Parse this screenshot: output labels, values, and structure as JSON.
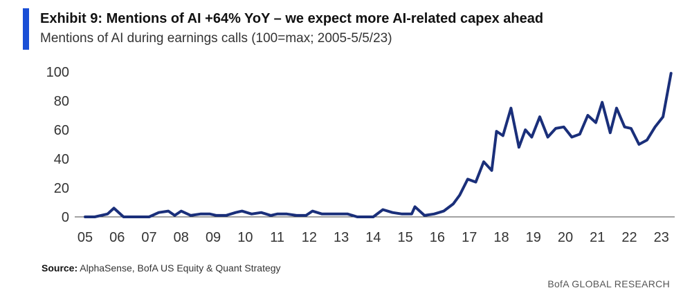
{
  "header": {
    "title": "Exhibit 9: Mentions of AI +64% YoY – we expect more AI-related capex ahead",
    "subtitle": "Mentions of AI during earnings calls (100=max; 2005-5/5/23)"
  },
  "footer": {
    "source_label": "Source:",
    "source_text": "AlphaSense,  BofA US Equity & Quant Strategy",
    "brand": "BofA GLOBAL RESEARCH"
  },
  "colors": {
    "accent": "#1a4fd6",
    "line": "#1a2f7a",
    "axis": "#444444"
  },
  "chart_data": {
    "type": "line",
    "title": "Exhibit 9: Mentions of AI +64% YoY – we expect more AI-related capex ahead",
    "subtitle": "Mentions of AI during earnings calls (100=max; 2005-5/5/23)",
    "xlabel": "",
    "ylabel": "",
    "xlim": [
      2005,
      2023.35
    ],
    "ylim": [
      0,
      100
    ],
    "grid": false,
    "yticks": [
      0,
      20,
      40,
      60,
      80,
      100
    ],
    "ytick_labels": [
      "0",
      "20",
      "40",
      "60",
      "80",
      "100"
    ],
    "xticks": [
      2005,
      2006,
      2007,
      2008,
      2009,
      2010,
      2011,
      2012,
      2013,
      2014,
      2015,
      2016,
      2017,
      2018,
      2019,
      2020,
      2021,
      2022,
      2023
    ],
    "xtick_labels": [
      "05",
      "06",
      "07",
      "08",
      "09",
      "10",
      "11",
      "12",
      "13",
      "14",
      "15",
      "16",
      "17",
      "18",
      "19",
      "20",
      "21",
      "22",
      "23"
    ],
    "series": [
      {
        "name": "Mentions of AI",
        "x": [
          2005.0,
          2005.3,
          2005.7,
          2005.9,
          2006.2,
          2006.5,
          2006.8,
          2007.0,
          2007.3,
          2007.6,
          2007.8,
          2008.0,
          2008.3,
          2008.6,
          2008.9,
          2009.1,
          2009.4,
          2009.7,
          2009.9,
          2010.2,
          2010.5,
          2010.8,
          2011.0,
          2011.3,
          2011.6,
          2011.9,
          2012.1,
          2012.4,
          2012.7,
          2012.9,
          2013.2,
          2013.5,
          2013.8,
          2014.0,
          2014.3,
          2014.6,
          2014.9,
          2015.2,
          2015.3,
          2015.6,
          2015.9,
          2016.2,
          2016.5,
          2016.7,
          2016.95,
          2017.2,
          2017.45,
          2017.7,
          2017.85,
          2018.05,
          2018.3,
          2018.55,
          2018.75,
          2018.95,
          2019.2,
          2019.45,
          2019.7,
          2019.95,
          2020.2,
          2020.45,
          2020.7,
          2020.95,
          2021.15,
          2021.4,
          2021.6,
          2021.85,
          2022.05,
          2022.3,
          2022.55,
          2022.8,
          2023.05,
          2023.3
        ],
        "values": [
          0,
          0,
          2,
          6,
          0,
          0,
          0,
          0,
          3,
          4,
          1,
          4,
          1,
          2,
          2,
          1,
          1,
          3,
          4,
          2,
          3,
          1,
          2,
          2,
          1,
          1,
          4,
          2,
          2,
          2,
          2,
          0,
          0,
          0,
          5,
          3,
          2,
          2,
          7,
          1,
          2,
          4,
          9,
          15,
          26,
          24,
          38,
          32,
          59,
          56,
          75,
          48,
          60,
          55,
          69,
          55,
          61,
          62,
          55,
          57,
          70,
          65,
          79,
          58,
          75,
          62,
          61,
          50,
          53,
          62,
          69,
          99
        ]
      }
    ]
  }
}
